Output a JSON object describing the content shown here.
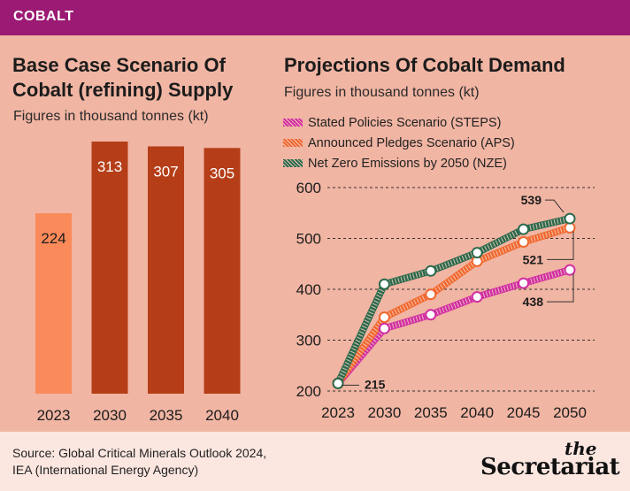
{
  "header": {
    "tag": "COBALT"
  },
  "left": {
    "title_line1": "Base Case Scenario Of",
    "title_line2": "Cobalt (refining) Supply",
    "subtitle": "Figures in thousand tonnes (kt)"
  },
  "right": {
    "title": "Projections Of Cobalt Demand",
    "subtitle": "Figures in thousand tonnes (kt)"
  },
  "chart_data": [
    {
      "type": "bar",
      "title": "Base Case Scenario Of Cobalt (refining) Supply",
      "subtitle": "Figures in thousand tonnes (kt)",
      "categories": [
        "2023",
        "2030",
        "2035",
        "2040"
      ],
      "values": [
        224,
        313,
        307,
        305
      ],
      "value_labels": [
        "224",
        "313",
        "307",
        "305"
      ],
      "colors": [
        "#fb8a5a",
        "#b53e18",
        "#b53e18",
        "#b53e18"
      ],
      "ylim": [
        0,
        313
      ]
    },
    {
      "type": "line",
      "title": "Projections Of Cobalt Demand",
      "subtitle": "Figures in thousand tonnes (kt)",
      "x": [
        "2023",
        "2030",
        "2035",
        "2040",
        "2045",
        "2050"
      ],
      "yticks": [
        "200",
        "300",
        "400",
        "500",
        "600"
      ],
      "ylim": [
        200,
        600
      ],
      "grid": true,
      "legend_position": "top-left",
      "series": [
        {
          "name": "Stated Policies Scenario (STEPS)",
          "color": "#d12ea2",
          "values": [
            215,
            323,
            350,
            385,
            412,
            438
          ]
        },
        {
          "name": "Announced Pledges Scenario (APS)",
          "color": "#f0682e",
          "values": [
            215,
            345,
            390,
            455,
            493,
            521
          ]
        },
        {
          "name": "Net Zero Emissions by 2050 (NZE)",
          "color": "#2c6a4c",
          "values": [
            215,
            410,
            436,
            472,
            518,
            539
          ]
        }
      ],
      "annotations": [
        {
          "text": "215",
          "x": "2023",
          "y": 215
        },
        {
          "text": "539",
          "x": "2050",
          "y": 539
        },
        {
          "text": "521",
          "x": "2050",
          "y": 521
        },
        {
          "text": "438",
          "x": "2050",
          "y": 438
        }
      ]
    }
  ],
  "footer": {
    "source_line1": "Source: Global Critical Minerals Outlook 2024,",
    "source_line2": "IEA (International Energy Agency)",
    "logo_the": "the",
    "logo_name": "Secretariat"
  }
}
